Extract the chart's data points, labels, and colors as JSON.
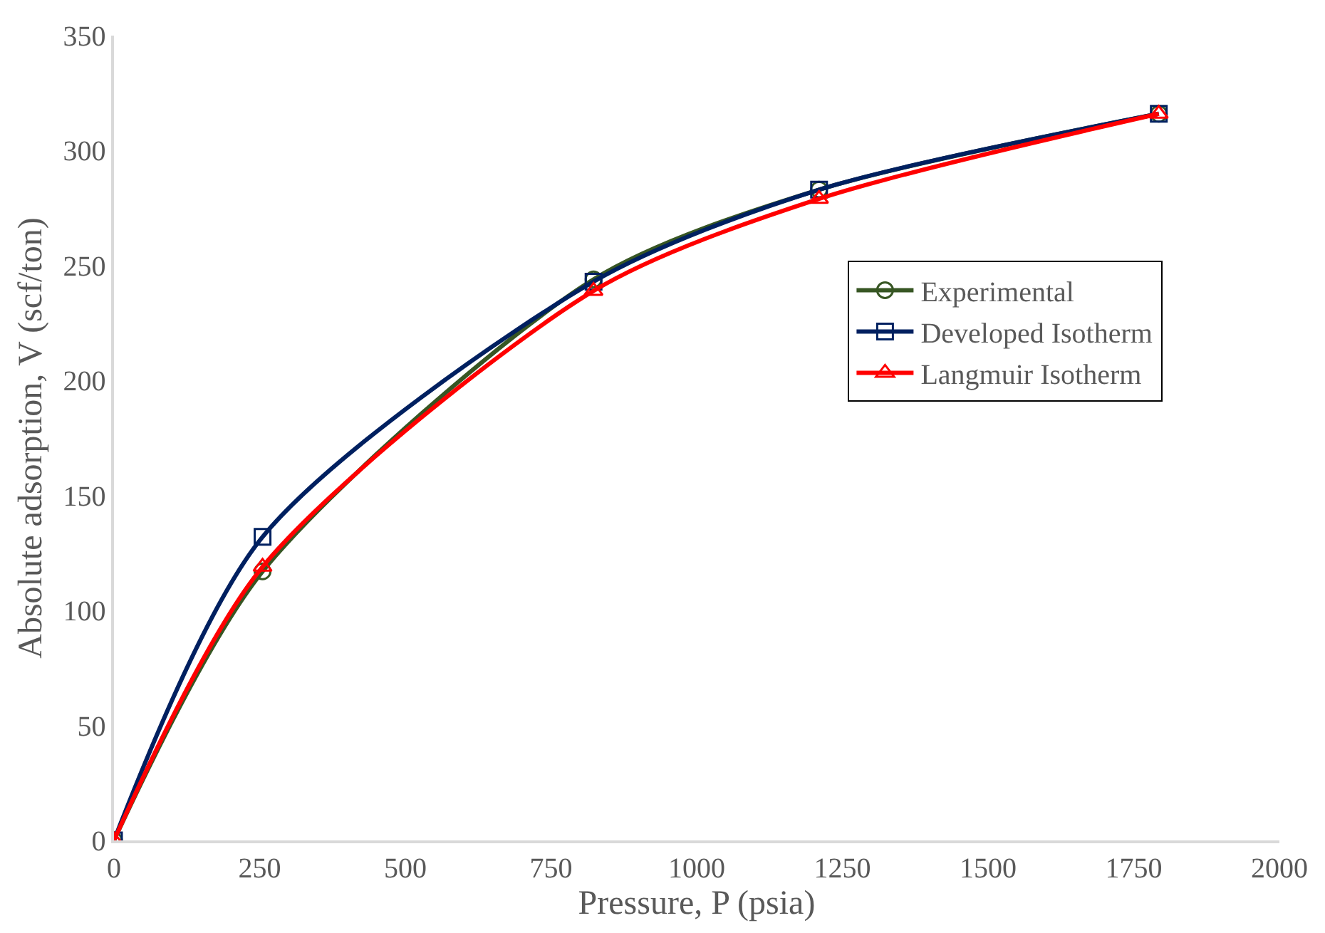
{
  "chart_data": {
    "type": "line",
    "xlabel": "Pressure, P (psia)",
    "ylabel": "Absolute adsorption, V (scf/ton)",
    "x": [
      0,
      255,
      823,
      1210,
      1793
    ],
    "series": [
      {
        "name": "Experimental",
        "color": "#375623",
        "marker": "circle",
        "values": [
          0,
          117,
          244,
          283,
          316
        ]
      },
      {
        "name": "Developed Isotherm",
        "color": "#002060",
        "marker": "square",
        "values": [
          0,
          132,
          243,
          283,
          316
        ]
      },
      {
        "name": "Langmuir Isotherm",
        "color": "#ff0000",
        "marker": "triangle",
        "values": [
          0,
          119,
          239,
          279,
          316
        ]
      }
    ],
    "xlim": [
      0,
      2000
    ],
    "xticks": [
      0,
      250,
      500,
      750,
      1000,
      1250,
      1500,
      1750,
      2000
    ],
    "ylim": [
      0,
      350
    ],
    "yticks": [
      0,
      50,
      100,
      150,
      200,
      250,
      300,
      350
    ],
    "legend": "right",
    "line_style": "solid"
  }
}
